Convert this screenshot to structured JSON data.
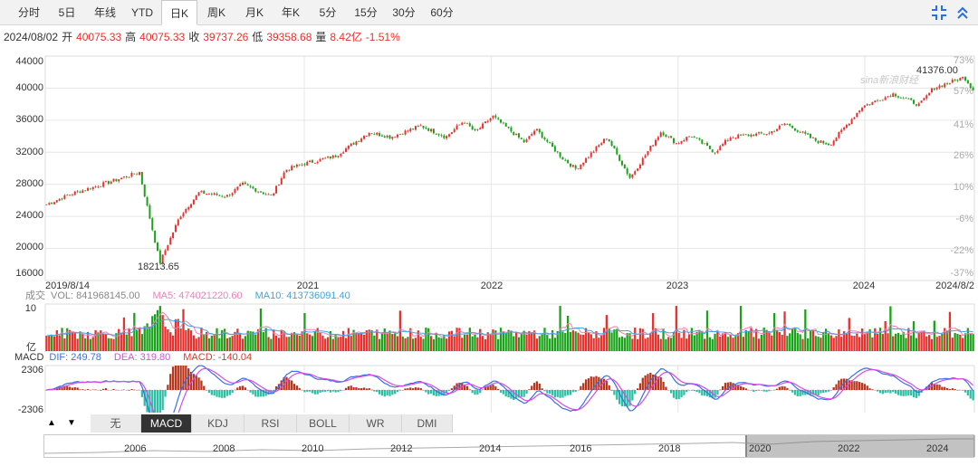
{
  "tabs": [
    {
      "label": "分时",
      "active": false
    },
    {
      "label": "5日",
      "active": false
    },
    {
      "label": "年线",
      "active": false
    },
    {
      "label": "YTD",
      "active": false
    },
    {
      "label": "日K",
      "active": true
    },
    {
      "label": "周K",
      "active": false
    },
    {
      "label": "月K",
      "active": false
    },
    {
      "label": "年K",
      "active": false
    },
    {
      "label": "5分",
      "active": false
    },
    {
      "label": "15分",
      "active": false
    },
    {
      "label": "30分",
      "active": false
    },
    {
      "label": "60分",
      "active": false
    }
  ],
  "toolbar": {
    "expand_icon": "expand-arrows-icon",
    "collapse_icon": "double-chevron-up-icon",
    "accent": "#2a6fdb"
  },
  "quote": {
    "date": "2024/08/02",
    "open_label": "开",
    "open": "40075.33",
    "high_label": "高",
    "high": "40075.33",
    "close_label": "收",
    "close": "39737.26",
    "low_label": "低",
    "low": "39358.68",
    "vol_label": "量",
    "vol": "8.42亿",
    "change": "-1.51%"
  },
  "colors": {
    "up": "#e8302d",
    "down": "#1aa31a",
    "ma5": "#f27fb8",
    "ma10": "#3aa6e6",
    "dif": "#3a6fe8",
    "dea": "#d64be8",
    "grid": "#e6e6e6"
  },
  "price_chart": {
    "y_ticks": [
      "44000",
      "40000",
      "36000",
      "32000",
      "28000",
      "24000",
      "20000",
      "16000"
    ],
    "pct_ticks": [
      "73%",
      "57%",
      "41%",
      "26%",
      "10%",
      "-6%",
      "-22%",
      "-37%"
    ],
    "x_labels": [
      "2019/8/14",
      "2021",
      "2022",
      "2023",
      "2024",
      "2024/8/2"
    ],
    "min_label": "18213.65",
    "max_label": "41376.00",
    "watermark": "sina新浪财经"
  },
  "chart_data": {
    "type": "line",
    "title": "",
    "xlabel": "",
    "ylabel": "",
    "ylim": [
      16000,
      44000
    ],
    "x": [
      "2019-08-14",
      "2019-10-01",
      "2019-12-01",
      "2020-02-12",
      "2020-03-23",
      "2020-05-01",
      "2020-06-08",
      "2020-08-01",
      "2020-09-01",
      "2020-10-28",
      "2020-11-24",
      "2021-01-01",
      "2021-03-01",
      "2021-05-07",
      "2021-06-18",
      "2021-08-16",
      "2021-10-04",
      "2021-11-08",
      "2021-12-01",
      "2022-01-04",
      "2022-03-08",
      "2022-03-29",
      "2022-05-20",
      "2022-06-16",
      "2022-08-16",
      "2022-09-30",
      "2022-11-30",
      "2022-12-30",
      "2023-01-27",
      "2023-03-15",
      "2023-04-14",
      "2023-06-30",
      "2023-07-31",
      "2023-09-30",
      "2023-10-27",
      "2023-12-29",
      "2024-02-28",
      "2024-04-19",
      "2024-05-16",
      "2024-07-16",
      "2024-08-02"
    ],
    "series": [
      {
        "values": [
          25500,
          26800,
          28000,
          29500,
          18213.65,
          24000,
          27000,
          26500,
          28000,
          26500,
          29800,
          30600,
          31500,
          34500,
          33900,
          35300,
          33900,
          35900,
          34500,
          36500,
          33200,
          34900,
          31300,
          29900,
          33900,
          28800,
          34600,
          33100,
          34100,
          32000,
          33900,
          34400,
          35600,
          33400,
          33000,
          37700,
          39300,
          37900,
          40000,
          41376,
          39737.26
        ]
      }
    ],
    "volume_series": {
      "name": "VOL",
      "ylim": [
        0,
        10
      ],
      "unit": "亿"
    },
    "macd_series": {
      "ylim": [
        -2306,
        2306
      ]
    }
  },
  "volume_panel": {
    "title": "成交",
    "vol_label": "VOL: 841968145.00",
    "ma5_label": "MA5: 474021220.60",
    "ma10_label": "MA10: 413736091.40",
    "y_top": "10",
    "y_unit": "亿"
  },
  "macd_panel": {
    "title": "MACD",
    "dif_label": "DIF: 249.78",
    "dea_label": "DEA: 319.80",
    "macd_label": "MACD: -140.04",
    "y_top": "2306",
    "y_bottom": "-2306"
  },
  "indicators": {
    "up_arrow": "▲",
    "down_arrow": "▼",
    "tabs": [
      {
        "label": "无",
        "active": false
      },
      {
        "label": "MACD",
        "active": true
      },
      {
        "label": "KDJ",
        "active": false
      },
      {
        "label": "RSI",
        "active": false
      },
      {
        "label": "BOLL",
        "active": false
      },
      {
        "label": "WR",
        "active": false
      },
      {
        "label": "DMI",
        "active": false
      }
    ]
  },
  "navigator": {
    "years": [
      "2006",
      "2008",
      "2010",
      "2012",
      "2014",
      "2016",
      "2018",
      "2020",
      "2022",
      "2024"
    ]
  }
}
